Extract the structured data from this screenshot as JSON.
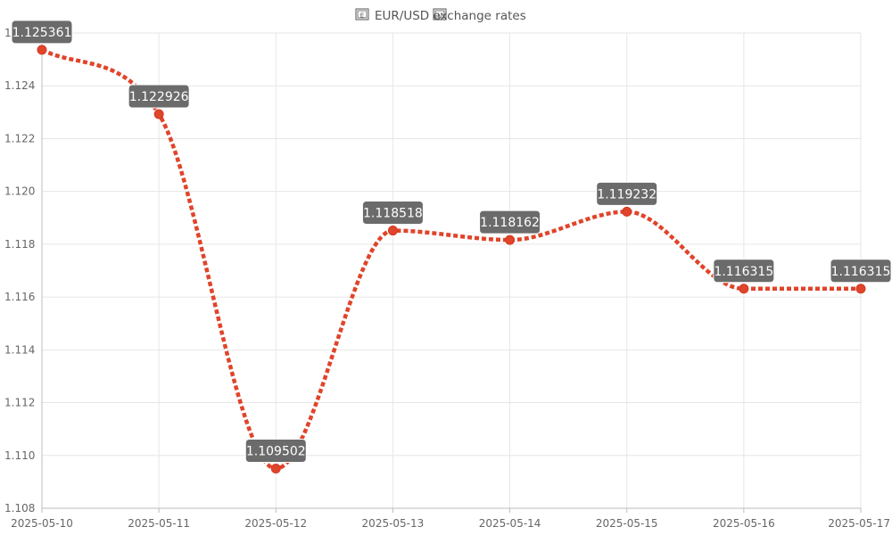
{
  "chart_data": {
    "type": "line",
    "title": "EUR/USD exchange rates",
    "title_icons": [
      "eu-flag-icon",
      "us-flag-icon"
    ],
    "x": [
      "2025-05-10",
      "2025-05-11",
      "2025-05-12",
      "2025-05-13",
      "2025-05-14",
      "2025-05-15",
      "2025-05-16",
      "2025-05-17"
    ],
    "series": [
      {
        "values": [
          1.125361,
          1.122926,
          1.109502,
          1.118518,
          1.118162,
          1.119232,
          1.116315,
          1.116315
        ],
        "labels": [
          "1.125361",
          "1.122926",
          "1.109502",
          "1.118518",
          "1.118162",
          "1.119232",
          "1.116315",
          "1.116315"
        ],
        "color": "#e0442a",
        "line_style": "dotted",
        "smooth": true
      }
    ],
    "ylim": [
      1.108,
      1.126
    ],
    "yticks": [
      "1.108",
      "1.110",
      "1.112",
      "1.114",
      "1.116",
      "1.118",
      "1.120",
      "1.122",
      "1.124",
      "1.126"
    ],
    "grid": true,
    "legend": false
  }
}
